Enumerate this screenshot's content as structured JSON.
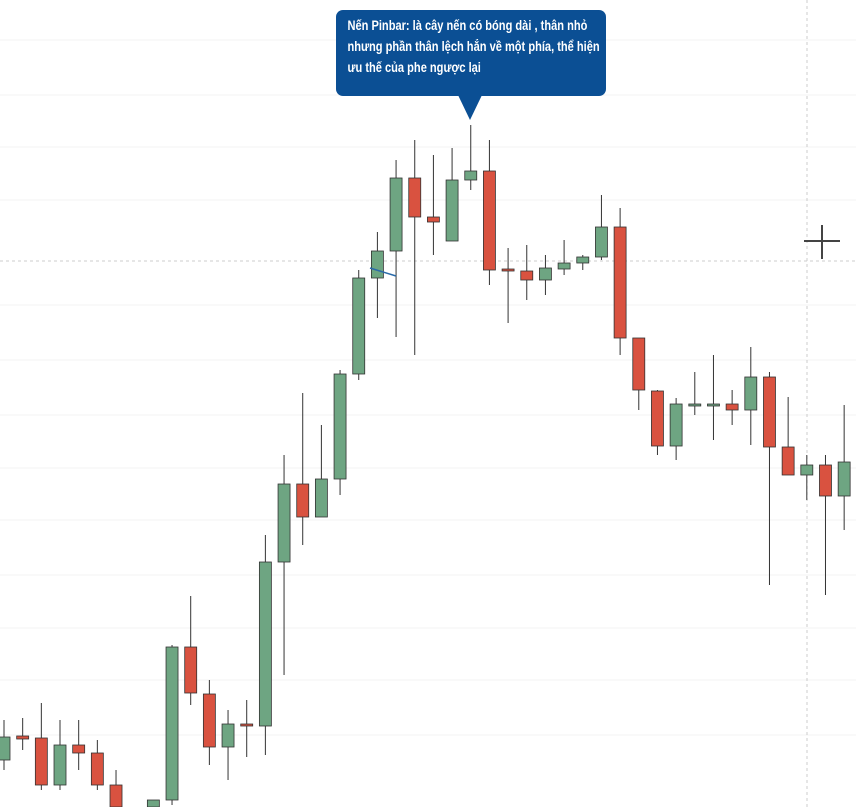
{
  "chart_data": {
    "type": "candlestick",
    "annotation": [
      "Nến Pinbar: là cây nến có bóng dài , thân nhỏ",
      "nhưng phần thân lệch hẳn về một phía, thể hiện",
      "ưu thế của phe ngược lại"
    ],
    "categories": [
      null,
      null,
      null,
      null,
      null,
      null,
      null,
      null,
      null,
      null,
      null,
      null,
      null,
      null,
      null,
      null,
      null,
      null,
      null,
      null,
      null,
      null,
      null,
      null,
      null,
      null,
      null,
      null,
      null,
      null,
      null,
      null,
      null,
      null,
      null,
      null,
      null,
      null,
      null,
      null,
      null,
      null,
      null,
      null,
      null,
      null
    ],
    "open": [
      47,
      71,
      69,
      22,
      62,
      54,
      22,
      null,
      0,
      7,
      160,
      113,
      60,
      83,
      81,
      245,
      323,
      290,
      328,
      433,
      529,
      556,
      629,
      590,
      566,
      627,
      636,
      538,
      536,
      527,
      538,
      544,
      550,
      580,
      469,
      416,
      361,
      401,
      401,
      403,
      397,
      430,
      360,
      332,
      342,
      311
    ],
    "high": [
      87,
      89,
      104,
      87,
      87,
      67,
      37,
      null,
      7,
      162,
      211,
      127,
      97,
      107,
      272,
      352,
      414,
      382,
      437,
      537,
      575,
      647,
      667,
      652,
      659,
      682,
      667,
      559,
      562,
      552,
      567,
      552,
      612,
      599,
      469,
      417,
      409,
      435,
      452,
      417,
      460,
      435,
      410,
      352,
      352,
      402
    ],
    "low": [
      37,
      57,
      17,
      17,
      37,
      17,
      -5,
      null,
      -5,
      2,
      102,
      42,
      27,
      50,
      52,
      132,
      262,
      290,
      312,
      427,
      489,
      470,
      452,
      552,
      566,
      617,
      522,
      484,
      507,
      512,
      532,
      537,
      547,
      452,
      397,
      352,
      347,
      392,
      367,
      382,
      362,
      222,
      332,
      307,
      212,
      277
    ],
    "close": [
      70,
      68,
      22,
      62,
      54,
      22,
      0,
      null,
      7,
      160,
      114,
      60,
      83,
      81,
      245,
      323,
      290,
      328,
      433,
      529,
      556,
      629,
      590,
      585,
      627,
      636,
      537,
      536,
      527,
      539,
      544,
      550,
      580,
      469,
      417,
      361,
      403,
      403,
      403,
      397,
      430,
      360,
      332,
      342,
      311,
      345
    ],
    "ylim": [
      0,
      807
    ],
    "up_color": "#6ea582",
    "down_color": "#d95240"
  }
}
